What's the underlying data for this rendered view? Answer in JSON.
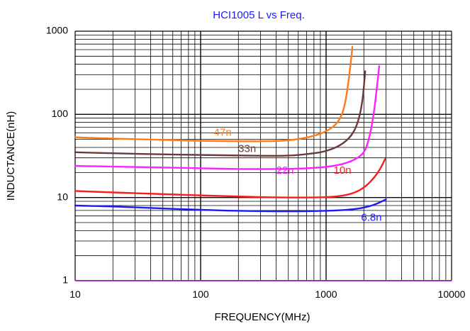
{
  "chart_data": {
    "type": "line",
    "title": "HCI1005 L vs Freq.",
    "title_color": "#1a1aff",
    "xlabel": "FREQUENCY(MHz)",
    "ylabel": "INDUCTANCE(nH)",
    "x_scale": "log",
    "y_scale": "log",
    "xlim": [
      10,
      10000
    ],
    "ylim": [
      1,
      1000
    ],
    "x_ticks": [
      10,
      100,
      1000,
      10000
    ],
    "x_tick_labels": [
      "10",
      "100",
      "1000",
      "10000"
    ],
    "y_ticks": [
      1,
      10,
      100,
      1000
    ],
    "y_tick_labels": [
      "1",
      "10",
      "100",
      "1000"
    ],
    "grid": true,
    "legend": "none",
    "series": [
      {
        "name": "47n",
        "color": "#ff7a1a",
        "label_at": [
          150,
          60
        ],
        "points": [
          [
            10,
            53
          ],
          [
            20,
            51
          ],
          [
            50,
            49.5
          ],
          [
            100,
            48
          ],
          [
            200,
            47.5
          ],
          [
            400,
            47.5
          ],
          [
            600,
            50
          ],
          [
            800,
            55
          ],
          [
            1000,
            62
          ],
          [
            1200,
            75
          ],
          [
            1350,
            100
          ],
          [
            1450,
            160
          ],
          [
            1550,
            340
          ],
          [
            1620,
            650
          ]
        ]
      },
      {
        "name": "33n",
        "color": "#6b3a3a",
        "label_at": [
          235,
          38
        ],
        "points": [
          [
            10,
            35
          ],
          [
            20,
            34
          ],
          [
            50,
            33
          ],
          [
            100,
            32.5
          ],
          [
            200,
            32
          ],
          [
            500,
            31.5
          ],
          [
            800,
            34
          ],
          [
            1000,
            36
          ],
          [
            1300,
            42
          ],
          [
            1600,
            55
          ],
          [
            1800,
            80
          ],
          [
            1950,
            140
          ],
          [
            2050,
            330
          ]
        ]
      },
      {
        "name": "22n",
        "color": "#ff22ff",
        "label_at": [
          470,
          21
        ],
        "points": [
          [
            10,
            24
          ],
          [
            20,
            23.5
          ],
          [
            50,
            23
          ],
          [
            100,
            22.5
          ],
          [
            200,
            22
          ],
          [
            500,
            22
          ],
          [
            1000,
            23
          ],
          [
            1500,
            26
          ],
          [
            2000,
            33
          ],
          [
            2200,
            50
          ],
          [
            2400,
            100
          ],
          [
            2550,
            220
          ],
          [
            2650,
            380
          ]
        ]
      },
      {
        "name": "10n",
        "color": "#ff1a1a",
        "label_at": [
          1350,
          21
        ],
        "points": [
          [
            10,
            12
          ],
          [
            20,
            11.5
          ],
          [
            50,
            11
          ],
          [
            100,
            10.6
          ],
          [
            200,
            10.3
          ],
          [
            400,
            10
          ],
          [
            800,
            10
          ],
          [
            1200,
            10.2
          ],
          [
            1600,
            11
          ],
          [
            2000,
            13
          ],
          [
            2400,
            17
          ],
          [
            2700,
            22
          ],
          [
            2950,
            29
          ]
        ]
      },
      {
        "name": "6.8n",
        "color": "#1a1aff",
        "label_at": [
          2300,
          5.7
        ],
        "points": [
          [
            10,
            8
          ],
          [
            20,
            7.8
          ],
          [
            50,
            7.4
          ],
          [
            100,
            7.1
          ],
          [
            200,
            6.9
          ],
          [
            500,
            6.8
          ],
          [
            1000,
            6.9
          ],
          [
            1500,
            7.1
          ],
          [
            2000,
            7.5
          ],
          [
            2500,
            8.3
          ],
          [
            3000,
            9.5
          ]
        ]
      }
    ]
  }
}
